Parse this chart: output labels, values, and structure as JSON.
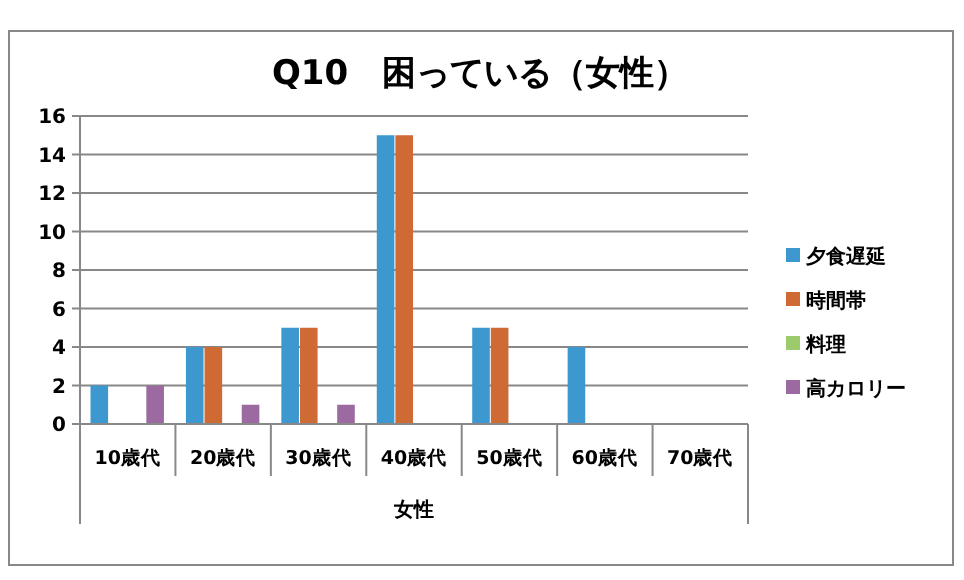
{
  "chart_data": {
    "type": "bar",
    "title": "Q10　困っている（女性）",
    "xlabel": "女性",
    "categories": [
      "10歳代",
      "20歳代",
      "30歳代",
      "40歳代",
      "50歳代",
      "60歳代",
      "70歳代"
    ],
    "series": [
      {
        "name": "夕食遅延",
        "color": "#3c98cf",
        "values": [
          2,
          4,
          5,
          15,
          5,
          4,
          0
        ]
      },
      {
        "name": "時間帯",
        "color": "#d06a34",
        "values": [
          0,
          4,
          5,
          15,
          5,
          0,
          0
        ]
      },
      {
        "name": "料理",
        "color": "#9bcb6b",
        "values": [
          0,
          0,
          0,
          0,
          0,
          0,
          0
        ]
      },
      {
        "name": "高カロリー",
        "color": "#9a6aa0",
        "values": [
          2,
          1,
          1,
          0,
          0,
          0,
          0
        ]
      }
    ],
    "ylim": [
      0,
      16
    ],
    "yticks": [
      0,
      2,
      4,
      6,
      8,
      10,
      12,
      14,
      16
    ],
    "grid": "y",
    "legend": "right"
  }
}
